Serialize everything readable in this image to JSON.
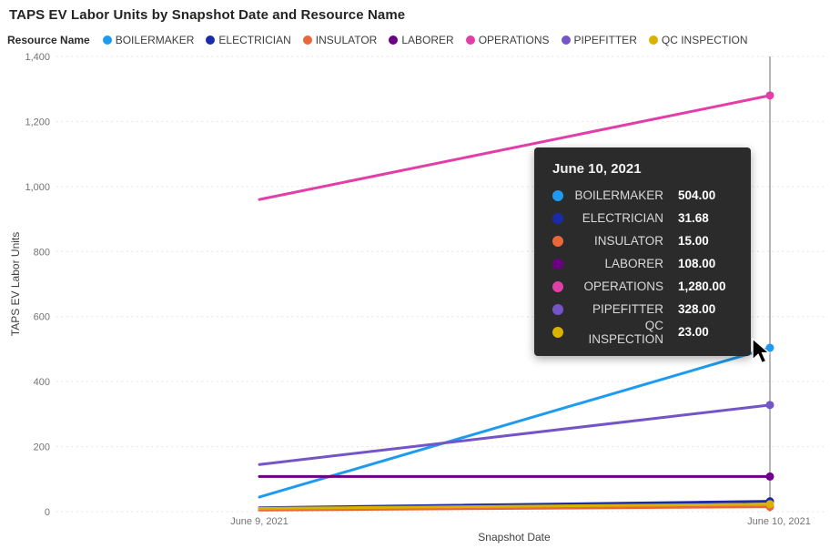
{
  "title": "TAPS EV Labor Units by Snapshot Date and Resource Name",
  "legend": {
    "label": "Resource Name"
  },
  "chart_data": {
    "type": "line",
    "x": [
      "June 9, 2021",
      "June 10, 2021"
    ],
    "series": [
      {
        "name": "BOILERMAKER",
        "color": "#1E9BF0",
        "values": [
          45,
          504
        ]
      },
      {
        "name": "ELECTRICIAN",
        "color": "#1B2AA8",
        "values": [
          12,
          31.68
        ]
      },
      {
        "name": "INSULATOR",
        "color": "#E8683A",
        "values": [
          5,
          15
        ]
      },
      {
        "name": "LABORER",
        "color": "#6B0084",
        "values": [
          108,
          108
        ]
      },
      {
        "name": "OPERATIONS",
        "color": "#E23EA8",
        "values": [
          960,
          1280
        ]
      },
      {
        "name": "PIPEFITTER",
        "color": "#7455C8",
        "values": [
          145,
          328
        ]
      },
      {
        "name": "QC INSPECTION",
        "color": "#D9B300",
        "values": [
          10,
          23
        ]
      }
    ],
    "title": "TAPS EV Labor Units by Snapshot Date and Resource Name",
    "xlabel": "Snapshot Date",
    "ylabel": "TAPS EV Labor Units",
    "ylim": [
      0,
      1400
    ],
    "yticks": [
      0,
      200,
      400,
      600,
      800,
      1000,
      1200,
      1400
    ],
    "ytick_labels": [
      "0",
      "200",
      "400",
      "600",
      "800",
      "1,000",
      "1,200",
      "1,400"
    ],
    "grid": "horizontal dotted gridlines",
    "legend_position": "top",
    "hovered_category": "June 10, 2021"
  },
  "tooltip": {
    "title": "June 10, 2021",
    "rows": [
      {
        "label": "BOILERMAKER",
        "value": "504.00",
        "color": "#1E9BF0"
      },
      {
        "label": "ELECTRICIAN",
        "value": "31.68",
        "color": "#1B2AA8"
      },
      {
        "label": "INSULATOR",
        "value": "15.00",
        "color": "#E8683A"
      },
      {
        "label": "LABORER",
        "value": "108.00",
        "color": "#6B0084"
      },
      {
        "label": "OPERATIONS",
        "value": "1,280.00",
        "color": "#E23EA8"
      },
      {
        "label": "PIPEFITTER",
        "value": "328.00",
        "color": "#7455C8"
      },
      {
        "label": "QC INSPECTION",
        "value": "23.00",
        "color": "#D9B300"
      }
    ]
  },
  "colors": {
    "background": "#FFFFFF",
    "gridline": "#DEDEDE",
    "axis_text": "#737373",
    "axis_title_text": "#404040",
    "title_text": "#252423",
    "tooltip_background": "#2B2B2B",
    "ruler_line": "#9E9E9E"
  }
}
